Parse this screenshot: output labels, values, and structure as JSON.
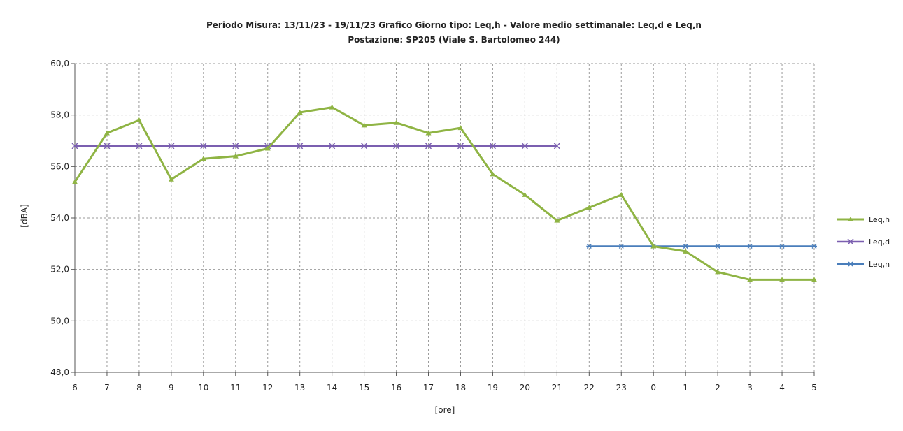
{
  "chart_data": {
    "type": "line",
    "title_line1": "Periodo Misura:  13/11/23 - 19/11/23  Grafico Giorno tipo:  Leq,h  -  Valore medio settimanale: Leq,d e Leq,n",
    "title_line2": "Postazione: SP205 (Viale S. Bartolomeo 244)",
    "xlabel": "[ore]",
    "ylabel": "[dBA]",
    "categories": [
      "6",
      "7",
      "8",
      "9",
      "10",
      "11",
      "12",
      "13",
      "14",
      "15",
      "16",
      "17",
      "18",
      "19",
      "20",
      "21",
      "22",
      "23",
      "0",
      "1",
      "2",
      "3",
      "4",
      "5"
    ],
    "ylim": [
      48,
      60
    ],
    "yticks": [
      "48,0",
      "50,0",
      "52,0",
      "54,0",
      "56,0",
      "58,0",
      "60,0"
    ],
    "grid": true,
    "legend_position": "right",
    "series": [
      {
        "name": "Leq,h",
        "color": "#8fb444",
        "marker": "triangle",
        "values": [
          55.4,
          57.3,
          57.8,
          55.5,
          56.3,
          56.4,
          56.7,
          58.1,
          58.3,
          57.6,
          57.7,
          57.3,
          57.5,
          55.7,
          54.9,
          53.9,
          54.4,
          54.9,
          52.9,
          52.7,
          51.9,
          51.6,
          51.6,
          51.6
        ]
      },
      {
        "name": "Leq,d",
        "color": "#7b5fb0",
        "marker": "x",
        "values": [
          56.8,
          56.8,
          56.8,
          56.8,
          56.8,
          56.8,
          56.8,
          56.8,
          56.8,
          56.8,
          56.8,
          56.8,
          56.8,
          56.8,
          56.8,
          56.8,
          null,
          null,
          null,
          null,
          null,
          null,
          null,
          null
        ]
      },
      {
        "name": "Leq,n",
        "color": "#4a7ebb",
        "marker": "star",
        "values": [
          null,
          null,
          null,
          null,
          null,
          null,
          null,
          null,
          null,
          null,
          null,
          null,
          null,
          null,
          null,
          null,
          52.9,
          52.9,
          52.9,
          52.9,
          52.9,
          52.9,
          52.9,
          52.9
        ]
      }
    ]
  }
}
